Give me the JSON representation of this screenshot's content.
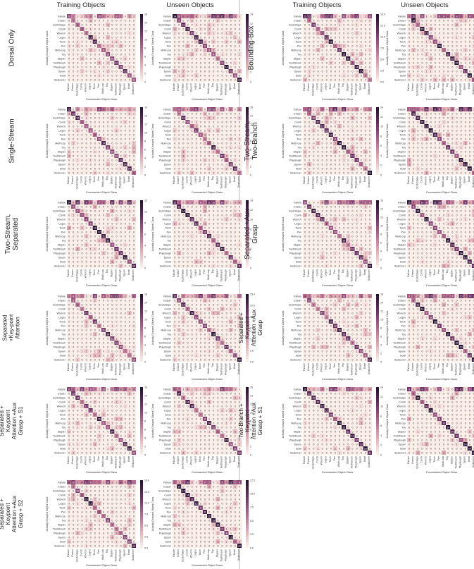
{
  "column_headers": {
    "left_training": "Training Objects",
    "left_unseen": "Unseen Objects",
    "right_training": "Training Objects",
    "right_unseen": "Unseen Objects"
  },
  "axis_labels": {
    "x": "Commanded Object Class",
    "y": "Actually Grasped Object Class"
  },
  "class_labels": [
    "Failure",
    "Eraser",
    "Scotchtape",
    "Comb",
    "Wrench",
    "Legos",
    "Torch",
    "Pen",
    "Multi-cup",
    "Toy",
    "Stapler",
    "Toothbrush",
    "Playdough",
    "Spoon",
    "Bowl",
    "Seatcover"
  ],
  "colors": {
    "low": "#fbeee9",
    "high": "#2a1433"
  },
  "rows": [
    {
      "left": "Dorsal Only",
      "right": "Bounding-Box"
    },
    {
      "left": "Single-Stream",
      "right": "Two-Stream, Two-Branch"
    },
    {
      "left": "Two-Stream, Separated",
      "right": "Separated +Aux Grasp"
    },
    {
      "left": "Separated +Key-point Attention",
      "right": "Separated + Keypoint Attention +Aux Grasp"
    },
    {
      "left": "Separated + Keypoint Attention +Aux Grasp + S1",
      "right": "Two-Branch + Keypoint Attention +Aux Grasp + S1"
    },
    {
      "left": "Separated + Keypoint Attention +Aux Grasp + S2",
      "right": ""
    }
  ],
  "chart_data": {
    "type": "heatmap",
    "description_note": "",
    "panels": [
      {
        "row": 0,
        "side": "left",
        "set": "training",
        "cbar_ticks": [
          "0",
          "2",
          "4",
          "6",
          "8",
          "10",
          "12",
          "14",
          "16"
        ],
        "vmax": 16
      },
      {
        "row": 0,
        "side": "left",
        "set": "unseen",
        "cbar_ticks": [
          "0",
          "2",
          "4",
          "6",
          "8",
          "10",
          "12",
          "14"
        ],
        "vmax": 14
      },
      {
        "row": 0,
        "side": "right",
        "set": "training",
        "cbar_ticks": [
          "0.0",
          "2.5",
          "5.0",
          "7.5",
          "10.0",
          "12.5",
          "15.0"
        ],
        "vmax": 15
      },
      {
        "row": 0,
        "side": "right",
        "set": "unseen",
        "cbar_ticks": [
          "0.0",
          "2.5",
          "5.0",
          "7.5",
          "10.0",
          "12.5",
          "15.0"
        ],
        "vmax": 15
      },
      {
        "row": 1,
        "side": "left",
        "set": "training",
        "cbar_ticks": [
          "0",
          "2",
          "4",
          "6",
          "8",
          "10",
          "12",
          "14",
          "16"
        ],
        "vmax": 16
      },
      {
        "row": 1,
        "side": "left",
        "set": "unseen",
        "cbar_ticks": [
          "0",
          "2",
          "4",
          "6",
          "8",
          "10",
          "12",
          "14",
          "16"
        ],
        "vmax": 16
      },
      {
        "row": 1,
        "side": "right",
        "set": "training",
        "cbar_ticks": [
          "0",
          "2",
          "4",
          "6",
          "8",
          "10",
          "12",
          "14"
        ],
        "vmax": 14
      },
      {
        "row": 1,
        "side": "right",
        "set": "unseen",
        "cbar_ticks": [
          "0.0",
          "2.5",
          "5.0",
          "7.5",
          "10.0",
          "12.5"
        ],
        "vmax": 12.5
      },
      {
        "row": 2,
        "side": "left",
        "set": "training",
        "cbar_ticks": [
          "0",
          "2",
          "4",
          "6",
          "8",
          "10",
          "12"
        ],
        "vmax": 12
      },
      {
        "row": 2,
        "side": "left",
        "set": "unseen",
        "cbar_ticks": [
          "0",
          "2",
          "4",
          "6",
          "8",
          "10",
          "12",
          "14"
        ],
        "vmax": 14
      },
      {
        "row": 2,
        "side": "right",
        "set": "training",
        "cbar_ticks": [
          "0",
          "2",
          "4",
          "6",
          "8",
          "10",
          "12",
          "14",
          "16"
        ],
        "vmax": 16
      },
      {
        "row": 2,
        "side": "right",
        "set": "unseen",
        "cbar_ticks": [
          "0.0",
          "2.5",
          "5.0",
          "7.5",
          "10.0",
          "12.5"
        ],
        "vmax": 12.5
      },
      {
        "row": 3,
        "side": "left",
        "set": "training",
        "cbar_ticks": [
          "0",
          "2",
          "4",
          "6",
          "8",
          "10",
          "12",
          "14",
          "16"
        ],
        "vmax": 16
      },
      {
        "row": 3,
        "side": "left",
        "set": "unseen",
        "cbar_ticks": [
          "0.0",
          "2.5",
          "5.0",
          "7.5",
          "10.0",
          "12.5",
          "15.0"
        ],
        "vmax": 15
      },
      {
        "row": 3,
        "side": "right",
        "set": "training",
        "cbar_ticks": [
          "0",
          "2",
          "4",
          "6",
          "8",
          "10",
          "12",
          "14",
          "16"
        ],
        "vmax": 16
      },
      {
        "row": 3,
        "side": "right",
        "set": "unseen",
        "cbar_ticks": [
          "0.0",
          "2.5",
          "5.0",
          "7.5",
          "10.0",
          "12.5"
        ],
        "vmax": 12.5
      },
      {
        "row": 4,
        "side": "left",
        "set": "training",
        "cbar_ticks": [
          "0",
          "2",
          "4",
          "6",
          "8",
          "10",
          "12",
          "14",
          "16"
        ],
        "vmax": 16
      },
      {
        "row": 4,
        "side": "left",
        "set": "unseen",
        "cbar_ticks": [
          "0",
          "2",
          "4",
          "6",
          "8",
          "10",
          "12",
          "14",
          "16"
        ],
        "vmax": 16
      },
      {
        "row": 4,
        "side": "right",
        "set": "training",
        "cbar_ticks": [
          "0",
          "2",
          "4",
          "6",
          "8",
          "10",
          "12",
          "14"
        ],
        "vmax": 14
      },
      {
        "row": 4,
        "side": "right",
        "set": "unseen",
        "cbar_ticks": [
          "0",
          "2",
          "4",
          "6",
          "8",
          "10",
          "12"
        ],
        "vmax": 12
      },
      {
        "row": 5,
        "side": "left",
        "set": "training",
        "cbar_ticks": [
          "0.0",
          "2.5",
          "5.0",
          "7.5",
          "10.0",
          "12.5",
          "15.0"
        ],
        "vmax": 15
      },
      {
        "row": 5,
        "side": "left",
        "set": "unseen",
        "cbar_ticks": [
          "0.0",
          "2.5",
          "5.0",
          "7.5",
          "10.0",
          "12.5"
        ],
        "vmax": 12.5
      }
    ]
  }
}
